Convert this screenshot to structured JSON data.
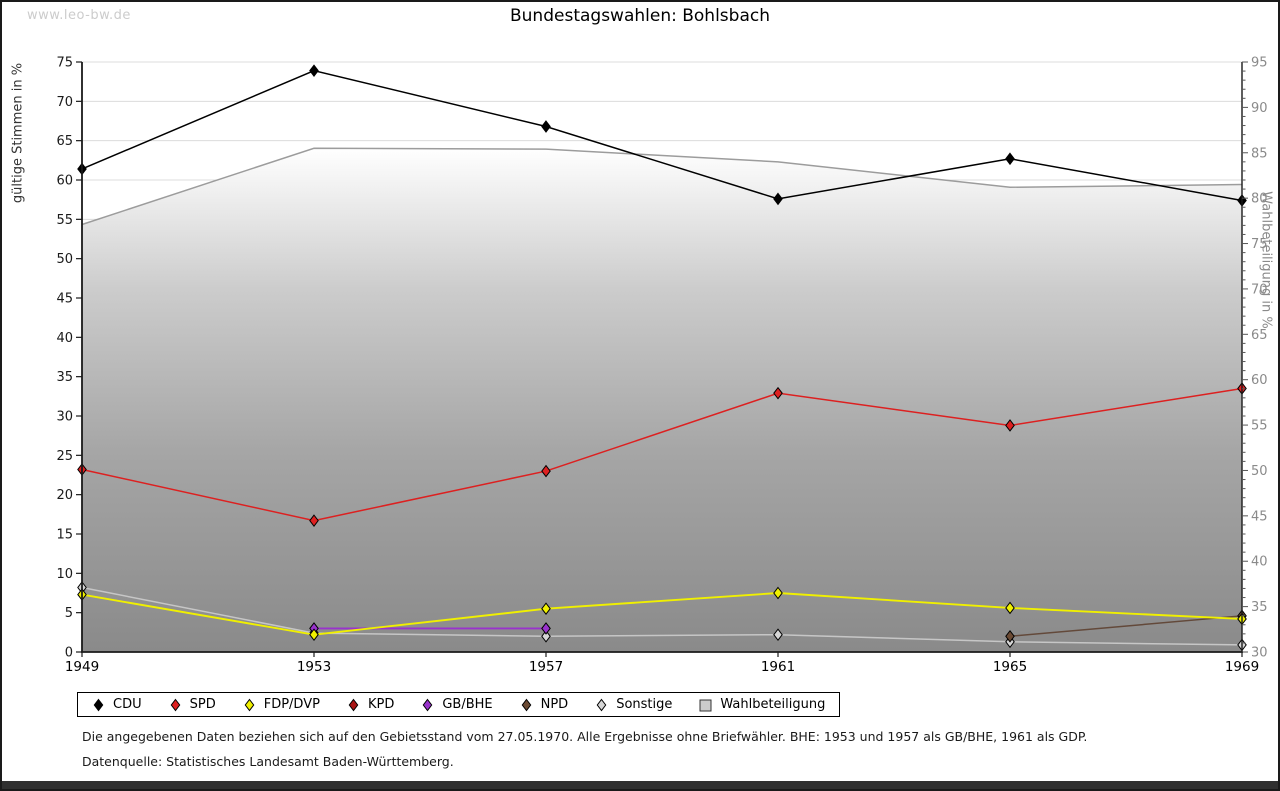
{
  "watermark": "www.leo-bw.de",
  "title": "Bundestagswahlen: Bohlsbach",
  "footnotes": {
    "line1": "Die angegebenen Daten beziehen sich auf den Gebietsstand vom 27.05.1970. Alle Ergebnisse ohne Briefwähler. BHE: 1953 und 1957 als GB/BHE, 1961 als GDP.",
    "line2": "Datenquelle: Statistisches Landesamt Baden-Württemberg."
  },
  "chart_data": {
    "type": "line",
    "x": [
      1949,
      1953,
      1957,
      1961,
      1965,
      1969
    ],
    "left_axis": {
      "label": "gültige Stimmen in %",
      "min": 0,
      "max": 75,
      "tick_step": 5
    },
    "right_axis": {
      "label": "Wahlbeteiligung in %",
      "min": 30,
      "max": 95,
      "tick_step": 5,
      "minor_tick_step": 1
    },
    "grid": true,
    "legend_position": "bottom",
    "series": [
      {
        "name": "CDU",
        "axis": "left",
        "color": "#000000",
        "marker": "diamond",
        "marker_fill": "#000000",
        "values": [
          61.4,
          73.9,
          66.8,
          57.6,
          62.7,
          57.4
        ]
      },
      {
        "name": "SPD",
        "axis": "left",
        "color": "#dd2020",
        "marker": "diamond",
        "marker_fill": "#dd2020",
        "values": [
          23.2,
          16.7,
          23.0,
          32.9,
          28.8,
          33.5
        ]
      },
      {
        "name": "FDP/DVP",
        "axis": "left",
        "color": "#f0f000",
        "marker": "diamond",
        "marker_fill": "#f0f000",
        "values": [
          7.3,
          2.2,
          5.5,
          7.5,
          5.6,
          4.2
        ]
      },
      {
        "name": "KPD",
        "axis": "left",
        "color": "#aa1515",
        "marker": "diamond",
        "marker_fill": "#aa1515",
        "values": [
          null,
          null,
          null,
          null,
          null,
          null
        ]
      },
      {
        "name": "GB/BHE",
        "axis": "left",
        "color": "#9933cc",
        "marker": "diamond",
        "marker_fill": "#9933cc",
        "values": [
          null,
          3.0,
          3.0,
          null,
          null,
          null
        ]
      },
      {
        "name": "NPD",
        "axis": "left",
        "color": "#63493a",
        "marker": "diamond",
        "marker_fill": "#6b4a33",
        "values": [
          null,
          null,
          null,
          null,
          2.0,
          4.6
        ]
      },
      {
        "name": "Sonstige",
        "axis": "left",
        "color": "#c6c6c6",
        "marker": "diamond",
        "marker_fill": "#d6d6d6",
        "values": [
          8.2,
          2.4,
          2.0,
          2.2,
          1.3,
          0.9
        ]
      },
      {
        "name": "Wahlbeteiligung",
        "axis": "right",
        "color": "#9c9c9c",
        "marker": "square",
        "marker_fill": "#cccccc",
        "area": true,
        "values": [
          77.1,
          85.5,
          85.4,
          84.0,
          81.2,
          81.5
        ]
      }
    ],
    "style": {
      "grid_color": "#dcdcdc",
      "axis_color": "#1a1a1a",
      "left_tick_label_color": "#1a1a1a",
      "right_tick_label_color": "#8a8a8a",
      "x_tick_label_color": "#000000",
      "area_gradient": [
        "#ffffff",
        "#cccccc",
        "#a6a6a6",
        "#8a8a8a"
      ]
    }
  }
}
